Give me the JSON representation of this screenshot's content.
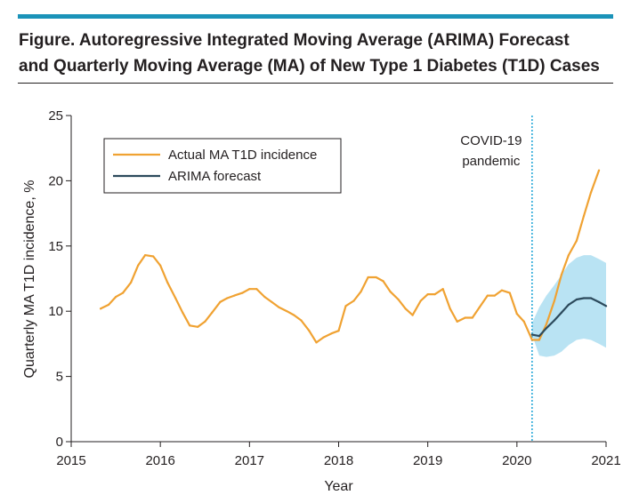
{
  "figure": {
    "title_line1": "Figure. Autoregressive Integrated Moving Average (ARIMA) Forecast",
    "title_line2": "and Quarterly Moving Average (MA) of New Type 1 Diabetes (T1D) Cases"
  },
  "colors": {
    "accent_rule": "#1b93b9",
    "actual": "#f0a232",
    "forecast": "#2c4a5c",
    "forecast_band": "#b9e3f3",
    "covid_line": "#29a9d8",
    "covid_text": "#29a9d8"
  },
  "chart_data": {
    "type": "line",
    "title": "",
    "xlabel": "Year",
    "ylabel": "Quarterly MA T1D incidence, %",
    "xlim": [
      2015,
      2021
    ],
    "ylim": [
      0,
      25
    ],
    "x_ticks": [
      2015,
      2016,
      2017,
      2018,
      2019,
      2020,
      2021
    ],
    "x_tick_labels": [
      "2015",
      "2016",
      "2017",
      "2018",
      "2019",
      "2020",
      "2021"
    ],
    "y_ticks": [
      0,
      5,
      10,
      15,
      20,
      25
    ],
    "y_tick_labels": [
      "0",
      "5",
      "10",
      "15",
      "20",
      "25"
    ],
    "grid": false,
    "legend_position": "top-left",
    "annotation": {
      "x": 2020.17,
      "label_line1": "COVID-19",
      "label_line2": "pandemic"
    },
    "series": [
      {
        "name": "Actual MA T1D incidence",
        "x": [
          2015.33,
          2015.42,
          2015.5,
          2015.58,
          2015.67,
          2015.75,
          2015.83,
          2015.92,
          2016.0,
          2016.08,
          2016.17,
          2016.25,
          2016.33,
          2016.42,
          2016.5,
          2016.58,
          2016.67,
          2016.75,
          2016.83,
          2016.92,
          2017.0,
          2017.08,
          2017.17,
          2017.25,
          2017.33,
          2017.42,
          2017.5,
          2017.58,
          2017.67,
          2017.75,
          2017.83,
          2017.92,
          2018.0,
          2018.08,
          2018.17,
          2018.25,
          2018.33,
          2018.42,
          2018.5,
          2018.58,
          2018.67,
          2018.75,
          2018.83,
          2018.92,
          2019.0,
          2019.08,
          2019.17,
          2019.25,
          2019.33,
          2019.42,
          2019.5,
          2019.58,
          2019.67,
          2019.75,
          2019.83,
          2019.92,
          2020.0,
          2020.08,
          2020.17,
          2020.25,
          2020.33,
          2020.42,
          2020.5,
          2020.58,
          2020.67,
          2020.75,
          2020.83,
          2020.92
        ],
        "y": [
          10.2,
          10.5,
          11.1,
          11.4,
          12.2,
          13.5,
          14.3,
          14.2,
          13.5,
          12.2,
          11.0,
          9.9,
          8.9,
          8.8,
          9.2,
          9.9,
          10.7,
          11.0,
          11.2,
          11.4,
          11.7,
          11.7,
          11.1,
          10.7,
          10.3,
          10.0,
          9.7,
          9.3,
          8.5,
          7.6,
          8.0,
          8.3,
          8.5,
          10.4,
          10.8,
          11.5,
          12.6,
          12.6,
          12.3,
          11.5,
          10.9,
          10.2,
          9.7,
          10.8,
          11.3,
          11.3,
          11.7,
          10.2,
          9.2,
          9.5,
          9.5,
          10.3,
          11.2,
          11.2,
          11.6,
          11.4,
          9.8,
          9.2,
          7.8,
          7.8,
          9.0,
          10.8,
          12.8,
          14.3,
          15.4,
          17.3,
          19.1,
          20.8
        ]
      },
      {
        "name": "ARIMA forecast",
        "x": [
          2020.17,
          2020.25,
          2020.33,
          2020.42,
          2020.5,
          2020.58,
          2020.67,
          2020.75,
          2020.83,
          2020.92,
          2021.0
        ],
        "y": [
          8.2,
          8.1,
          8.7,
          9.3,
          9.9,
          10.5,
          10.9,
          11.0,
          11.0,
          10.7,
          10.4
        ],
        "band_lower": [
          8.2,
          6.6,
          6.5,
          6.6,
          6.9,
          7.4,
          7.8,
          7.9,
          7.8,
          7.5,
          7.2
        ],
        "band_upper": [
          9.1,
          10.3,
          11.2,
          12.0,
          12.8,
          13.6,
          14.1,
          14.3,
          14.3,
          14.0,
          13.7
        ]
      }
    ]
  }
}
